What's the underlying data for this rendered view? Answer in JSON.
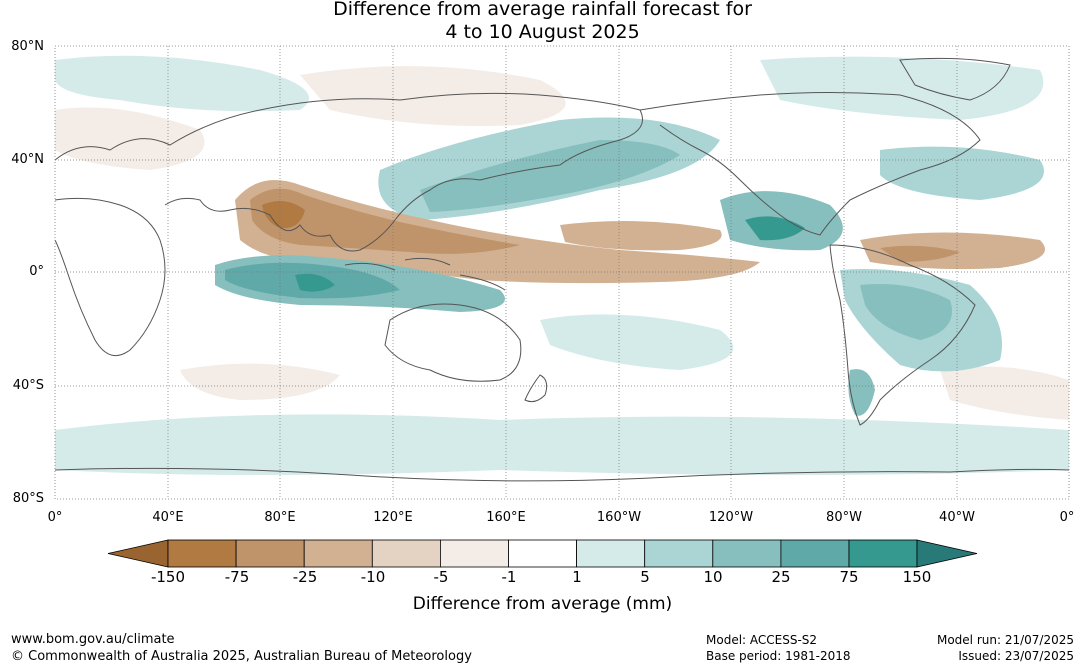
{
  "title": {
    "line1": "Difference from average rainfall forecast for",
    "line2": "4 to 10 August 2025"
  },
  "map": {
    "lat_labels": [
      "80°N",
      "40°N",
      "0°",
      "40°S",
      "80°S"
    ],
    "lon_labels": [
      "0°",
      "40°E",
      "80°E",
      "120°E",
      "160°E",
      "160°W",
      "120°W",
      "80°W",
      "40°W",
      "0°"
    ],
    "anomaly_regions": [
      {
        "name": "indian-ocean-wet",
        "level": "75 to 150",
        "color": "#3a9e9a"
      },
      {
        "name": "south-asia-dry",
        "level": "-75 to -25",
        "color": "#c4956a"
      },
      {
        "name": "west-pacific-dry",
        "level": "-75 to -25",
        "color": "#c4956a"
      },
      {
        "name": "north-pacific-wet",
        "level": "10 to 25",
        "color": "#88c2c0"
      },
      {
        "name": "east-pacific-wet",
        "level": "75 to 150",
        "color": "#3a9e9a"
      },
      {
        "name": "central-pacific-dry",
        "level": "-25 to -10",
        "color": "#d4b397"
      },
      {
        "name": "south-america-wet",
        "level": "10 to 25",
        "color": "#88c2c0"
      },
      {
        "name": "tropical-atlantic-dry",
        "level": "-25 to -10",
        "color": "#d4b397"
      }
    ]
  },
  "colorbar": {
    "colors": [
      "#9a6430",
      "#b07a42",
      "#c0946a",
      "#d2b192",
      "#e4d3c2",
      "#f4ece6",
      "#ffffff",
      "#d5ebea",
      "#aad5d4",
      "#86bfbd",
      "#5fa9a8",
      "#35998f",
      "#287a78"
    ],
    "ticks": [
      "-150",
      "-75",
      "-25",
      "-10",
      "-5",
      "-1",
      "1",
      "5",
      "10",
      "25",
      "75",
      "150"
    ],
    "label": "Difference from average (mm)"
  },
  "footer": {
    "website": "www.bom.gov.au/climate",
    "copyright": "© Commonwealth of Australia 2025, Australian Bureau of Meteorology",
    "model": "Model: ACCESS-S2",
    "base_period": "Base period: 1981-2018",
    "model_run": "Model run: 21/07/2025",
    "issued": "Issued: 23/07/2025"
  }
}
